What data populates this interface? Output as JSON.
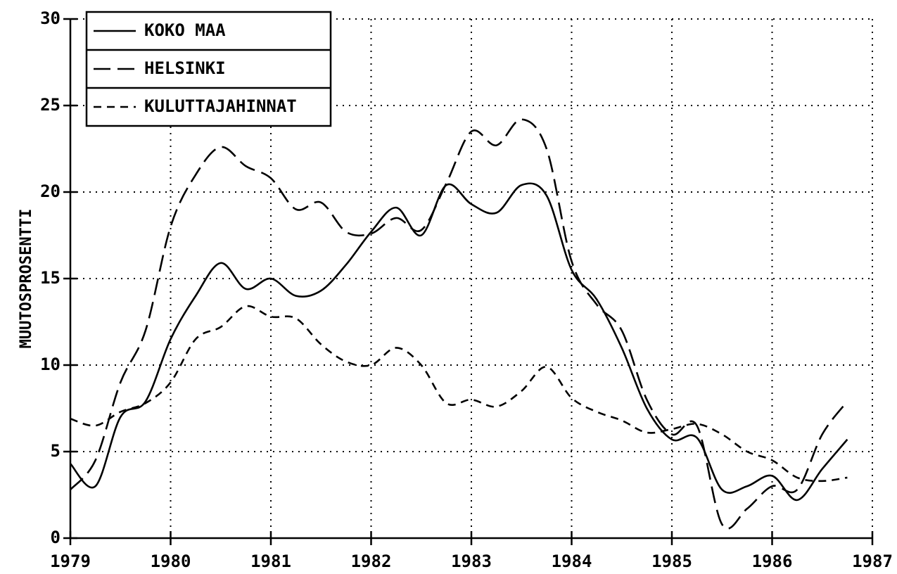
{
  "chart_data": {
    "type": "line",
    "y_label": "MUUTOSPROSENTTI",
    "x": [
      1979,
      1979.25,
      1979.5,
      1979.75,
      1980,
      1980.25,
      1980.5,
      1980.75,
      1981,
      1981.25,
      1981.5,
      1981.75,
      1982,
      1982.25,
      1982.5,
      1982.75,
      1983,
      1983.25,
      1983.5,
      1983.75,
      1984,
      1984.25,
      1984.5,
      1984.75,
      1985,
      1985.25,
      1985.5,
      1985.75,
      1986,
      1986.25,
      1986.5,
      1986.75
    ],
    "series": [
      {
        "name": "KOKO MAA",
        "color": "#000000",
        "dash": "solid",
        "values": [
          4.3,
          3.0,
          7.0,
          7.9,
          11.5,
          14.0,
          15.9,
          14.4,
          15.0,
          14.0,
          14.3,
          15.8,
          17.7,
          19.1,
          17.5,
          20.4,
          19.3,
          18.8,
          20.4,
          19.8,
          15.5,
          13.8,
          11.0,
          7.5,
          5.7,
          5.8,
          2.8,
          3.0,
          3.6,
          2.2,
          4.0,
          5.7
        ]
      },
      {
        "name": "HELSINKI",
        "color": "#000000",
        "dash": "long",
        "values": [
          2.8,
          4.5,
          9.0,
          12.0,
          18.0,
          21.0,
          22.6,
          21.5,
          20.8,
          19.0,
          19.4,
          17.7,
          17.6,
          18.5,
          17.8,
          20.5,
          23.5,
          22.7,
          24.2,
          22.5,
          16.0,
          13.5,
          12.0,
          8.0,
          6.0,
          6.5,
          0.8,
          1.7,
          3.0,
          2.8,
          6.0,
          7.9
        ]
      },
      {
        "name": "KULUTTAJAHINNAT",
        "color": "#000000",
        "dash": "short",
        "values": [
          6.9,
          6.5,
          7.3,
          7.8,
          9.0,
          11.5,
          12.2,
          13.4,
          12.8,
          12.7,
          11.2,
          10.2,
          10.0,
          11.0,
          10.0,
          7.8,
          8.0,
          7.6,
          8.5,
          9.9,
          8.1,
          7.3,
          6.8,
          6.1,
          6.3,
          6.6,
          6.0,
          5.0,
          4.5,
          3.5,
          3.3,
          3.5
        ]
      }
    ],
    "xlim": [
      1979,
      1987
    ],
    "xticks": [
      1979,
      1980,
      1981,
      1982,
      1983,
      1984,
      1985,
      1986,
      1987
    ],
    "ylim": [
      0,
      30
    ],
    "yticks": [
      0,
      5,
      10,
      15,
      20,
      25,
      30
    ],
    "grid": true,
    "legend": "upper left"
  }
}
